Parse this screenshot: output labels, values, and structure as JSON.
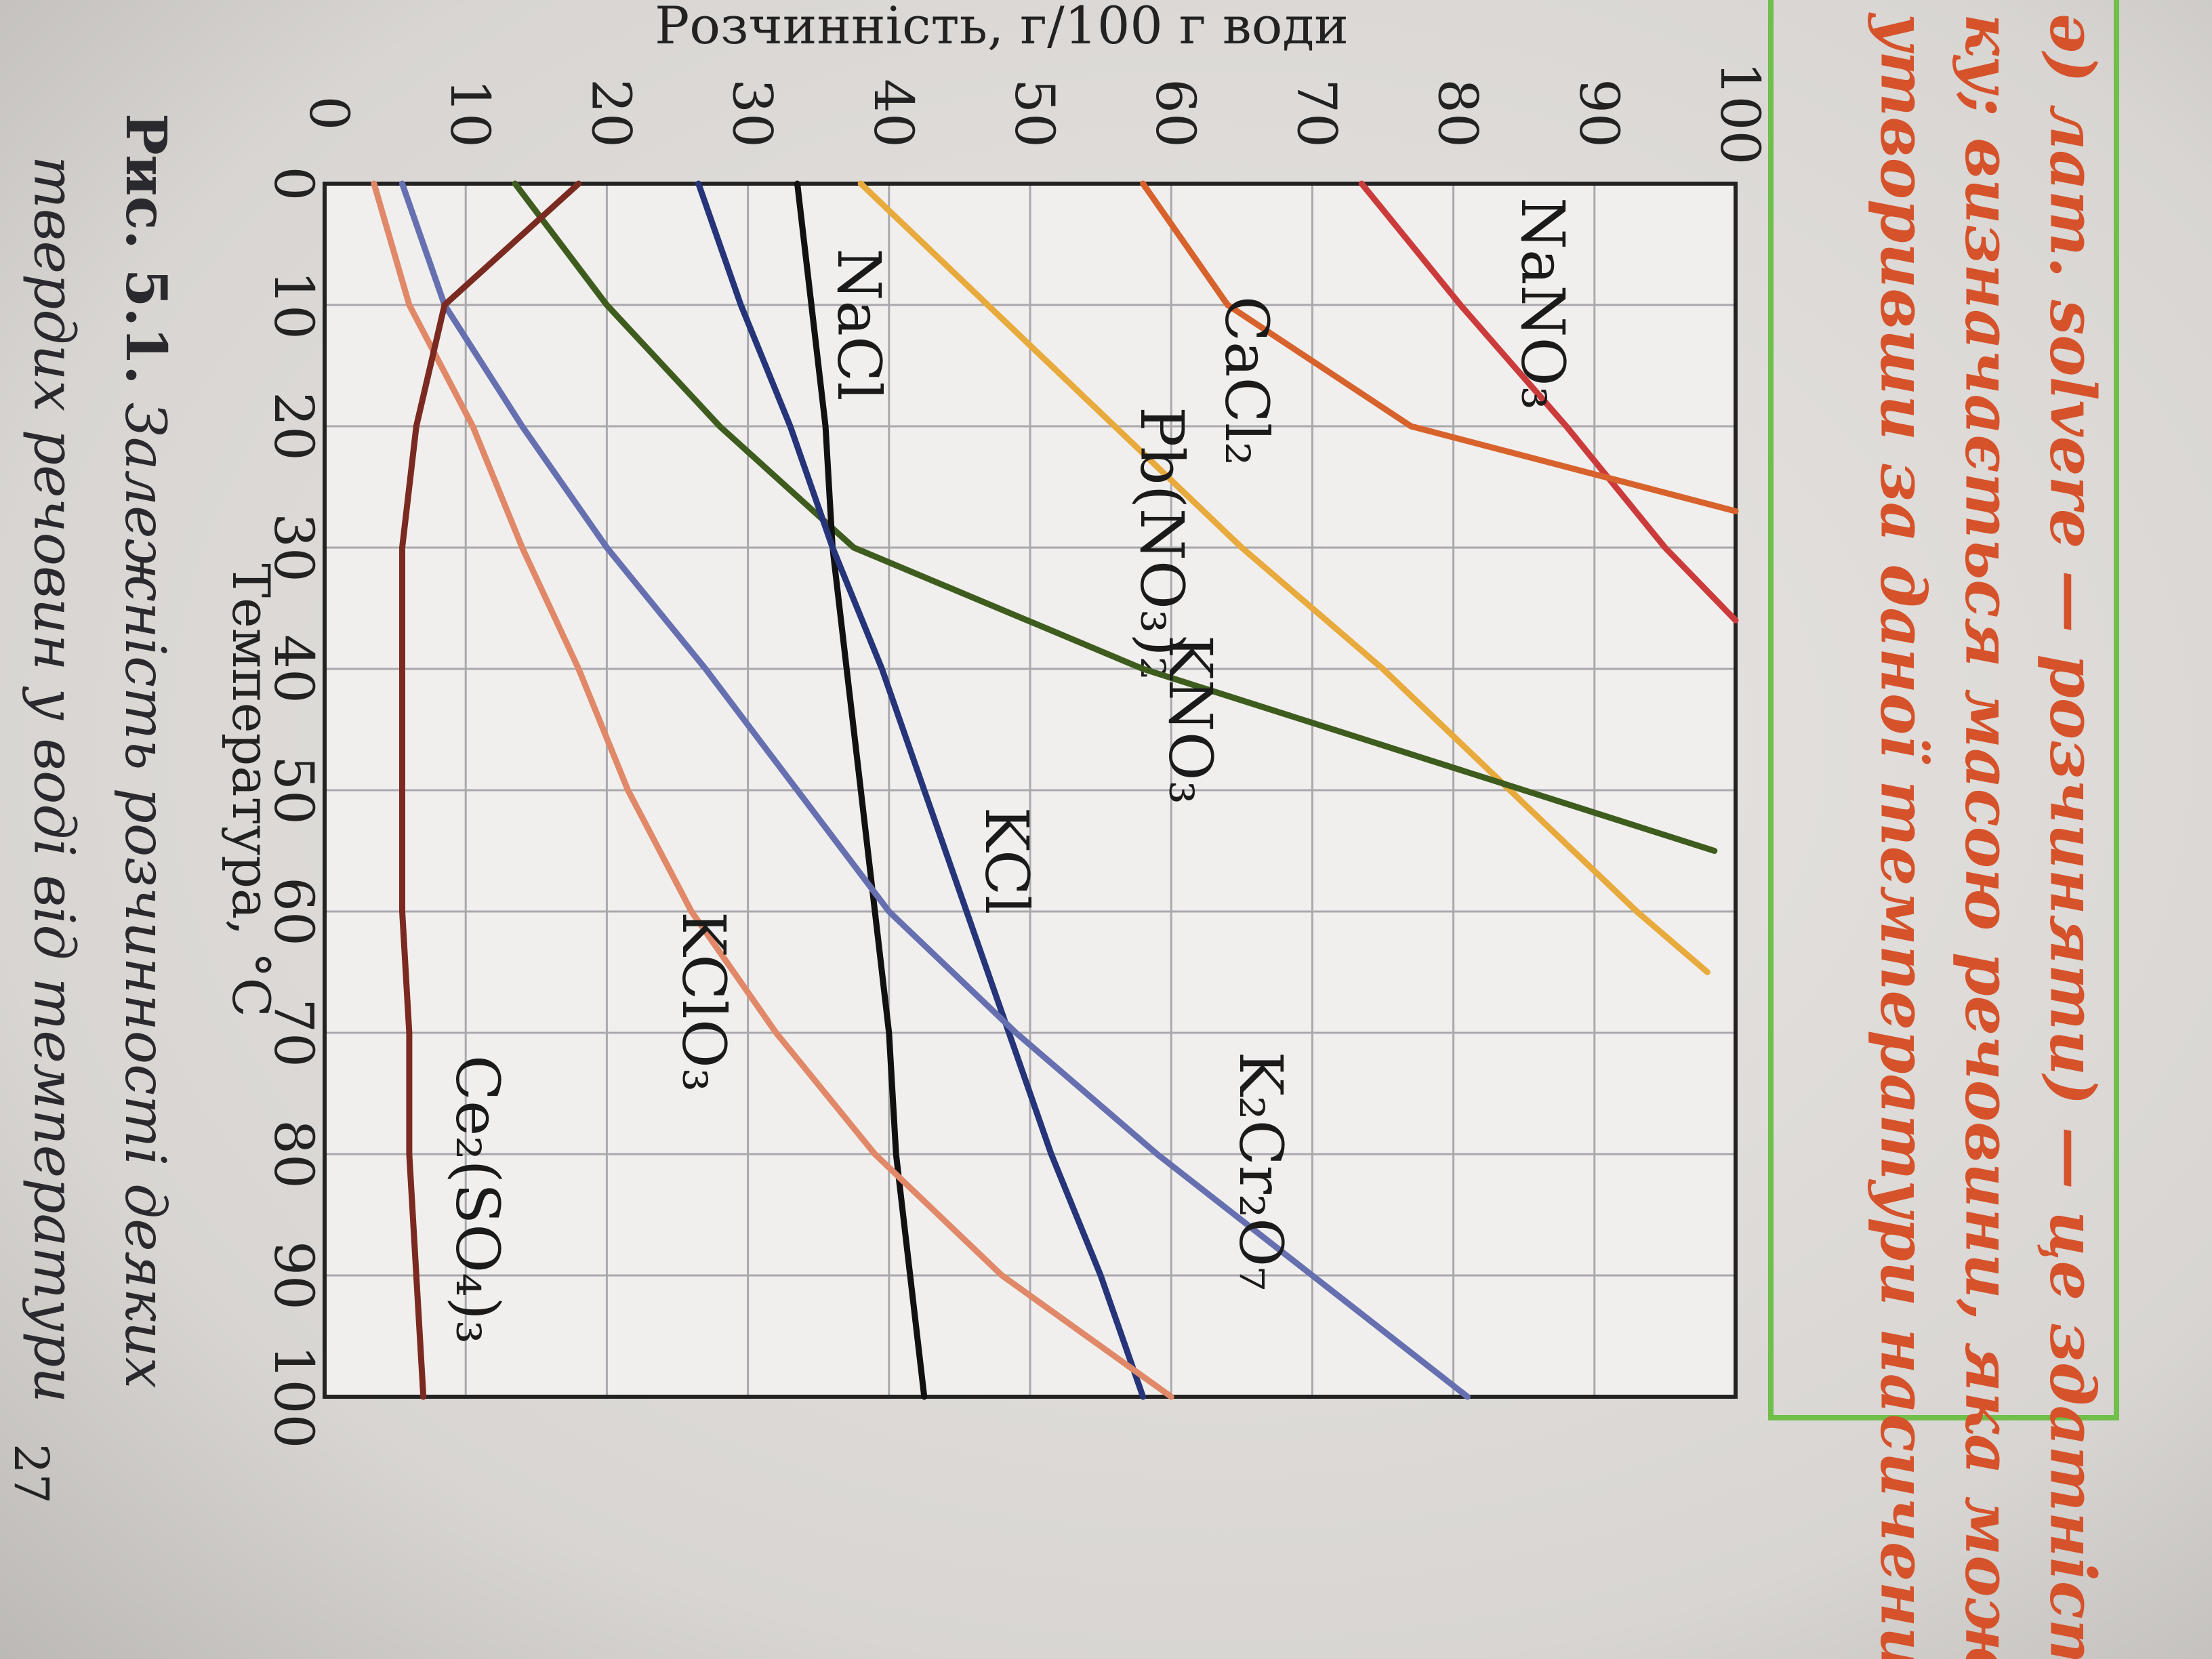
{
  "chart_data": {
    "type": "line",
    "title": "Розчинність, г/100 г води",
    "x_label": "Температура, °C",
    "xlim": [
      0,
      100
    ],
    "xticks": [
      0,
      10,
      20,
      30,
      40,
      50,
      60,
      70,
      80,
      90,
      100
    ],
    "ylim": [
      0,
      100
    ],
    "yticks": [
      0,
      10,
      20,
      30,
      40,
      50,
      60,
      70,
      80,
      90,
      100
    ],
    "grid": true,
    "series": [
      {
        "name": "NaNO₃",
        "color": "#cc3b3b",
        "x": [
          0,
          10,
          20,
          30,
          36
        ],
        "values": [
          73.5,
          80.5,
          88,
          95,
          100
        ]
      },
      {
        "name": "CaCl₂",
        "color": "#d8622c",
        "x": [
          0,
          10,
          20,
          27
        ],
        "values": [
          58,
          64,
          77,
          100
        ]
      },
      {
        "name": "Pb(NO₃)₂",
        "color": "#e8aa3c",
        "x": [
          0,
          10,
          20,
          30,
          40,
          50,
          60,
          65
        ],
        "values": [
          38,
          47,
          56,
          65,
          75,
          84,
          93,
          98
        ]
      },
      {
        "name": "KNO₃",
        "color": "#3e5c1e",
        "x": [
          0,
          10,
          20,
          30,
          40,
          50,
          55
        ],
        "values": [
          13.5,
          20,
          28,
          37.5,
          58,
          85,
          98.5
        ]
      },
      {
        "name": "NaCl",
        "color": "#111111",
        "x": [
          0,
          10,
          20,
          30,
          40,
          50,
          60,
          70,
          80,
          90,
          100
        ],
        "values": [
          33.5,
          34.5,
          35.5,
          36,
          37,
          38,
          39,
          40,
          40.5,
          41.5,
          42.5
        ]
      },
      {
        "name": "KCl",
        "color": "#26357a",
        "x": [
          0,
          10,
          20,
          30,
          40,
          50,
          60,
          70,
          80,
          90,
          100
        ],
        "values": [
          26.5,
          29.5,
          33,
          36,
          39.5,
          42.5,
          45.5,
          48.5,
          51.5,
          55,
          58
        ]
      },
      {
        "name": "K₂Cr₂O₇",
        "color": "#6670b0",
        "x": [
          0,
          10,
          20,
          30,
          40,
          50,
          60,
          70,
          80,
          90,
          100
        ],
        "values": [
          5.5,
          8.5,
          14,
          20,
          27,
          33.5,
          40,
          49,
          59,
          70,
          81
        ]
      },
      {
        "name": "KClO₃",
        "color": "#e08868",
        "x": [
          0,
          10,
          20,
          30,
          40,
          50,
          60,
          70,
          80,
          90,
          100
        ],
        "values": [
          3.5,
          6,
          10.5,
          14,
          18,
          21.5,
          26,
          32,
          39,
          48,
          60
        ]
      },
      {
        "name": "Ce₂(SO₄)₃",
        "color": "#7a2a20",
        "x": [
          0,
          10,
          20,
          30,
          40,
          50,
          60,
          70,
          80,
          90,
          100
        ],
        "values": [
          18,
          8.5,
          6.5,
          5.5,
          5.5,
          5.5,
          5.5,
          6,
          6,
          6.5,
          7
        ]
      }
    ],
    "caption": {
      "label": "Рис. 5.1.",
      "lines": [
        "Залежність розчинності деяких",
        "твердих речовин у воді від температури"
      ]
    }
  },
  "page_text": {
    "lines": [
      "ә) лат. solvere — розчиняти) — це здатність",
      "ку; визначається масою речовини, яка може",
      "утворивши за даної температури насичений"
    ],
    "page_number": "27"
  }
}
